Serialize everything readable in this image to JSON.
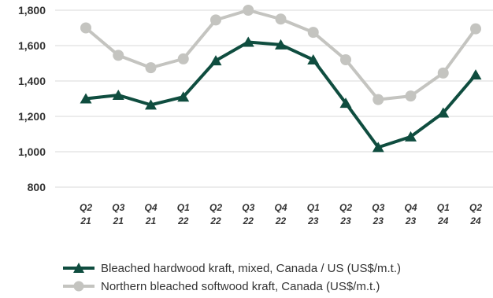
{
  "chart_data": {
    "type": "line",
    "categories": [
      [
        "Q2",
        "21"
      ],
      [
        "Q3",
        "21"
      ],
      [
        "Q4",
        "21"
      ],
      [
        "Q1",
        "22"
      ],
      [
        "Q2",
        "22"
      ],
      [
        "Q3",
        "22"
      ],
      [
        "Q4",
        "22"
      ],
      [
        "Q1",
        "23"
      ],
      [
        "Q2",
        "23"
      ],
      [
        "Q3",
        "23"
      ],
      [
        "Q4",
        "23"
      ],
      [
        "Q1",
        "24"
      ],
      [
        "Q2",
        "24"
      ]
    ],
    "ylim": [
      800,
      1800
    ],
    "yticks": [
      800,
      1000,
      1200,
      1400,
      1600,
      1800
    ],
    "ytick_labels": [
      "800",
      "1,000",
      "1,200",
      "1,400",
      "1,600",
      "1,800"
    ],
    "grid": true,
    "legend_position": "bottom",
    "series": [
      {
        "name": "Northern bleached softwood kraft, Canada (US$/m.t.)",
        "color": "#c4c4c0",
        "marker": "circle",
        "values": [
          1700,
          1545,
          1475,
          1525,
          1745,
          1800,
          1750,
          1675,
          1520,
          1295,
          1315,
          1445,
          1695
        ]
      },
      {
        "name": "Bleached hardwood kraft, mixed, Canada / US (US$/m.t.)",
        "color": "#0f4d3f",
        "marker": "triangle",
        "values": [
          1300,
          1320,
          1265,
          1310,
          1515,
          1620,
          1605,
          1520,
          1275,
          1025,
          1085,
          1220,
          1435
        ]
      }
    ]
  },
  "legend": [
    {
      "label": "Bleached hardwood kraft, mixed, Canada / US (US$/m.t.)",
      "marker": "triangle",
      "color": "#0f4d3f"
    },
    {
      "label": "Northern bleached softwood kraft, Canada (US$/m.t.)",
      "marker": "circle",
      "color": "#c4c4c0"
    }
  ],
  "colors": {
    "grid": "#d9d9d9",
    "text": "#333333"
  }
}
